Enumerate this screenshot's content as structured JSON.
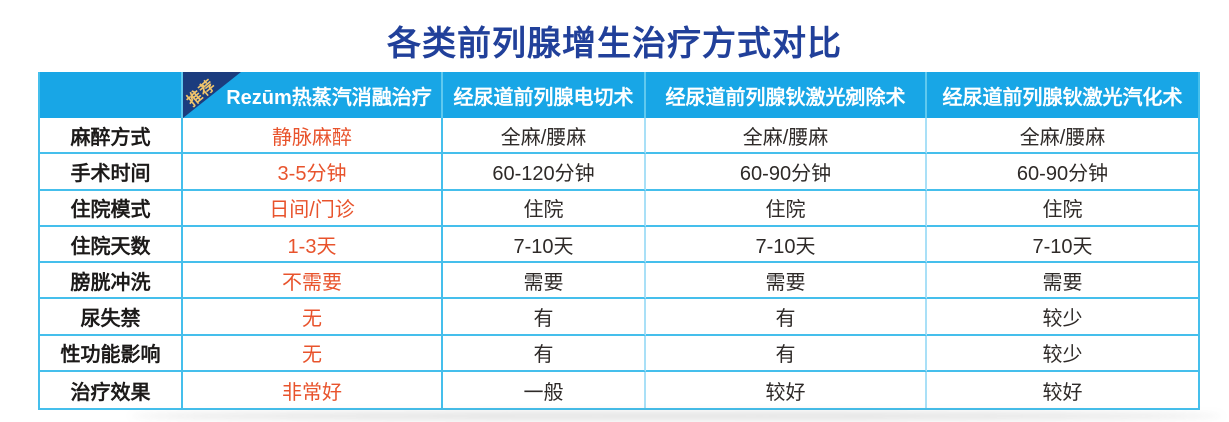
{
  "title": "各类前列腺增生治疗方式对比",
  "table": {
    "ribbon_label": "推荐",
    "columns": [
      "",
      "Rezūm热蒸汽消融治疗",
      "经尿道前列腺电切术",
      "经尿道前列腺钬激光剜除术",
      "经尿道前列腺钬激光汽化术"
    ],
    "rows": [
      {
        "label": "麻醉方式",
        "values": [
          "静脉麻醉",
          "全麻/腰麻",
          "全麻/腰麻",
          "全麻/腰麻"
        ]
      },
      {
        "label": "手术时间",
        "values": [
          "3-5分钟",
          "60-120分钟",
          "60-90分钟",
          "60-90分钟"
        ]
      },
      {
        "label": "住院模式",
        "values": [
          "日间/门诊",
          "住院",
          "住院",
          "住院"
        ]
      },
      {
        "label": "住院天数",
        "values": [
          "1-3天",
          "7-10天",
          "7-10天",
          "7-10天"
        ]
      },
      {
        "label": "膀胱冲洗",
        "values": [
          "不需要",
          "需要",
          "需要",
          "需要"
        ]
      },
      {
        "label": "尿失禁",
        "values": [
          "无",
          "有",
          "有",
          "较少"
        ]
      },
      {
        "label": "性功能影响",
        "values": [
          "无",
          "有",
          "有",
          "较少"
        ]
      },
      {
        "label": "治疗效果",
        "values": [
          "非常好",
          "一般",
          "较好",
          "较好"
        ]
      }
    ]
  },
  "colors": {
    "title": "#21409A",
    "header_bg": "#18A6E6",
    "header_text": "#FFFFFF",
    "ribbon_bg": "#1B3C7E",
    "ribbon_text": "#F2C56B",
    "highlight_text": "#E8532C",
    "body_text": "#2E2A28",
    "grid_line": "#45BFEC"
  },
  "chart_data": {
    "type": "table",
    "title": "各类前列腺增生治疗方式对比",
    "columns": [
      "Rezūm热蒸汽消融治疗",
      "经尿道前列腺电切术",
      "经尿道前列腺钬激光剜除术",
      "经尿道前列腺钬激光汽化术"
    ],
    "row_labels": [
      "麻醉方式",
      "手术时间",
      "住院模式",
      "住院天数",
      "膀胱冲洗",
      "尿失禁",
      "性功能影响",
      "治疗效果"
    ],
    "cells": [
      [
        "静脉麻醉",
        "全麻/腰麻",
        "全麻/腰麻",
        "全麻/腰麻"
      ],
      [
        "3-5分钟",
        "60-120分钟",
        "60-90分钟",
        "60-90分钟"
      ],
      [
        "日间/门诊",
        "住院",
        "住院",
        "住院"
      ],
      [
        "1-3天",
        "7-10天",
        "7-10天",
        "7-10天"
      ],
      [
        "不需要",
        "需要",
        "需要",
        "需要"
      ],
      [
        "无",
        "有",
        "有",
        "较少"
      ],
      [
        "无",
        "有",
        "有",
        "较少"
      ],
      [
        "非常好",
        "一般",
        "较好",
        "较好"
      ]
    ],
    "recommended_column": "Rezūm热蒸汽消融治疗"
  }
}
